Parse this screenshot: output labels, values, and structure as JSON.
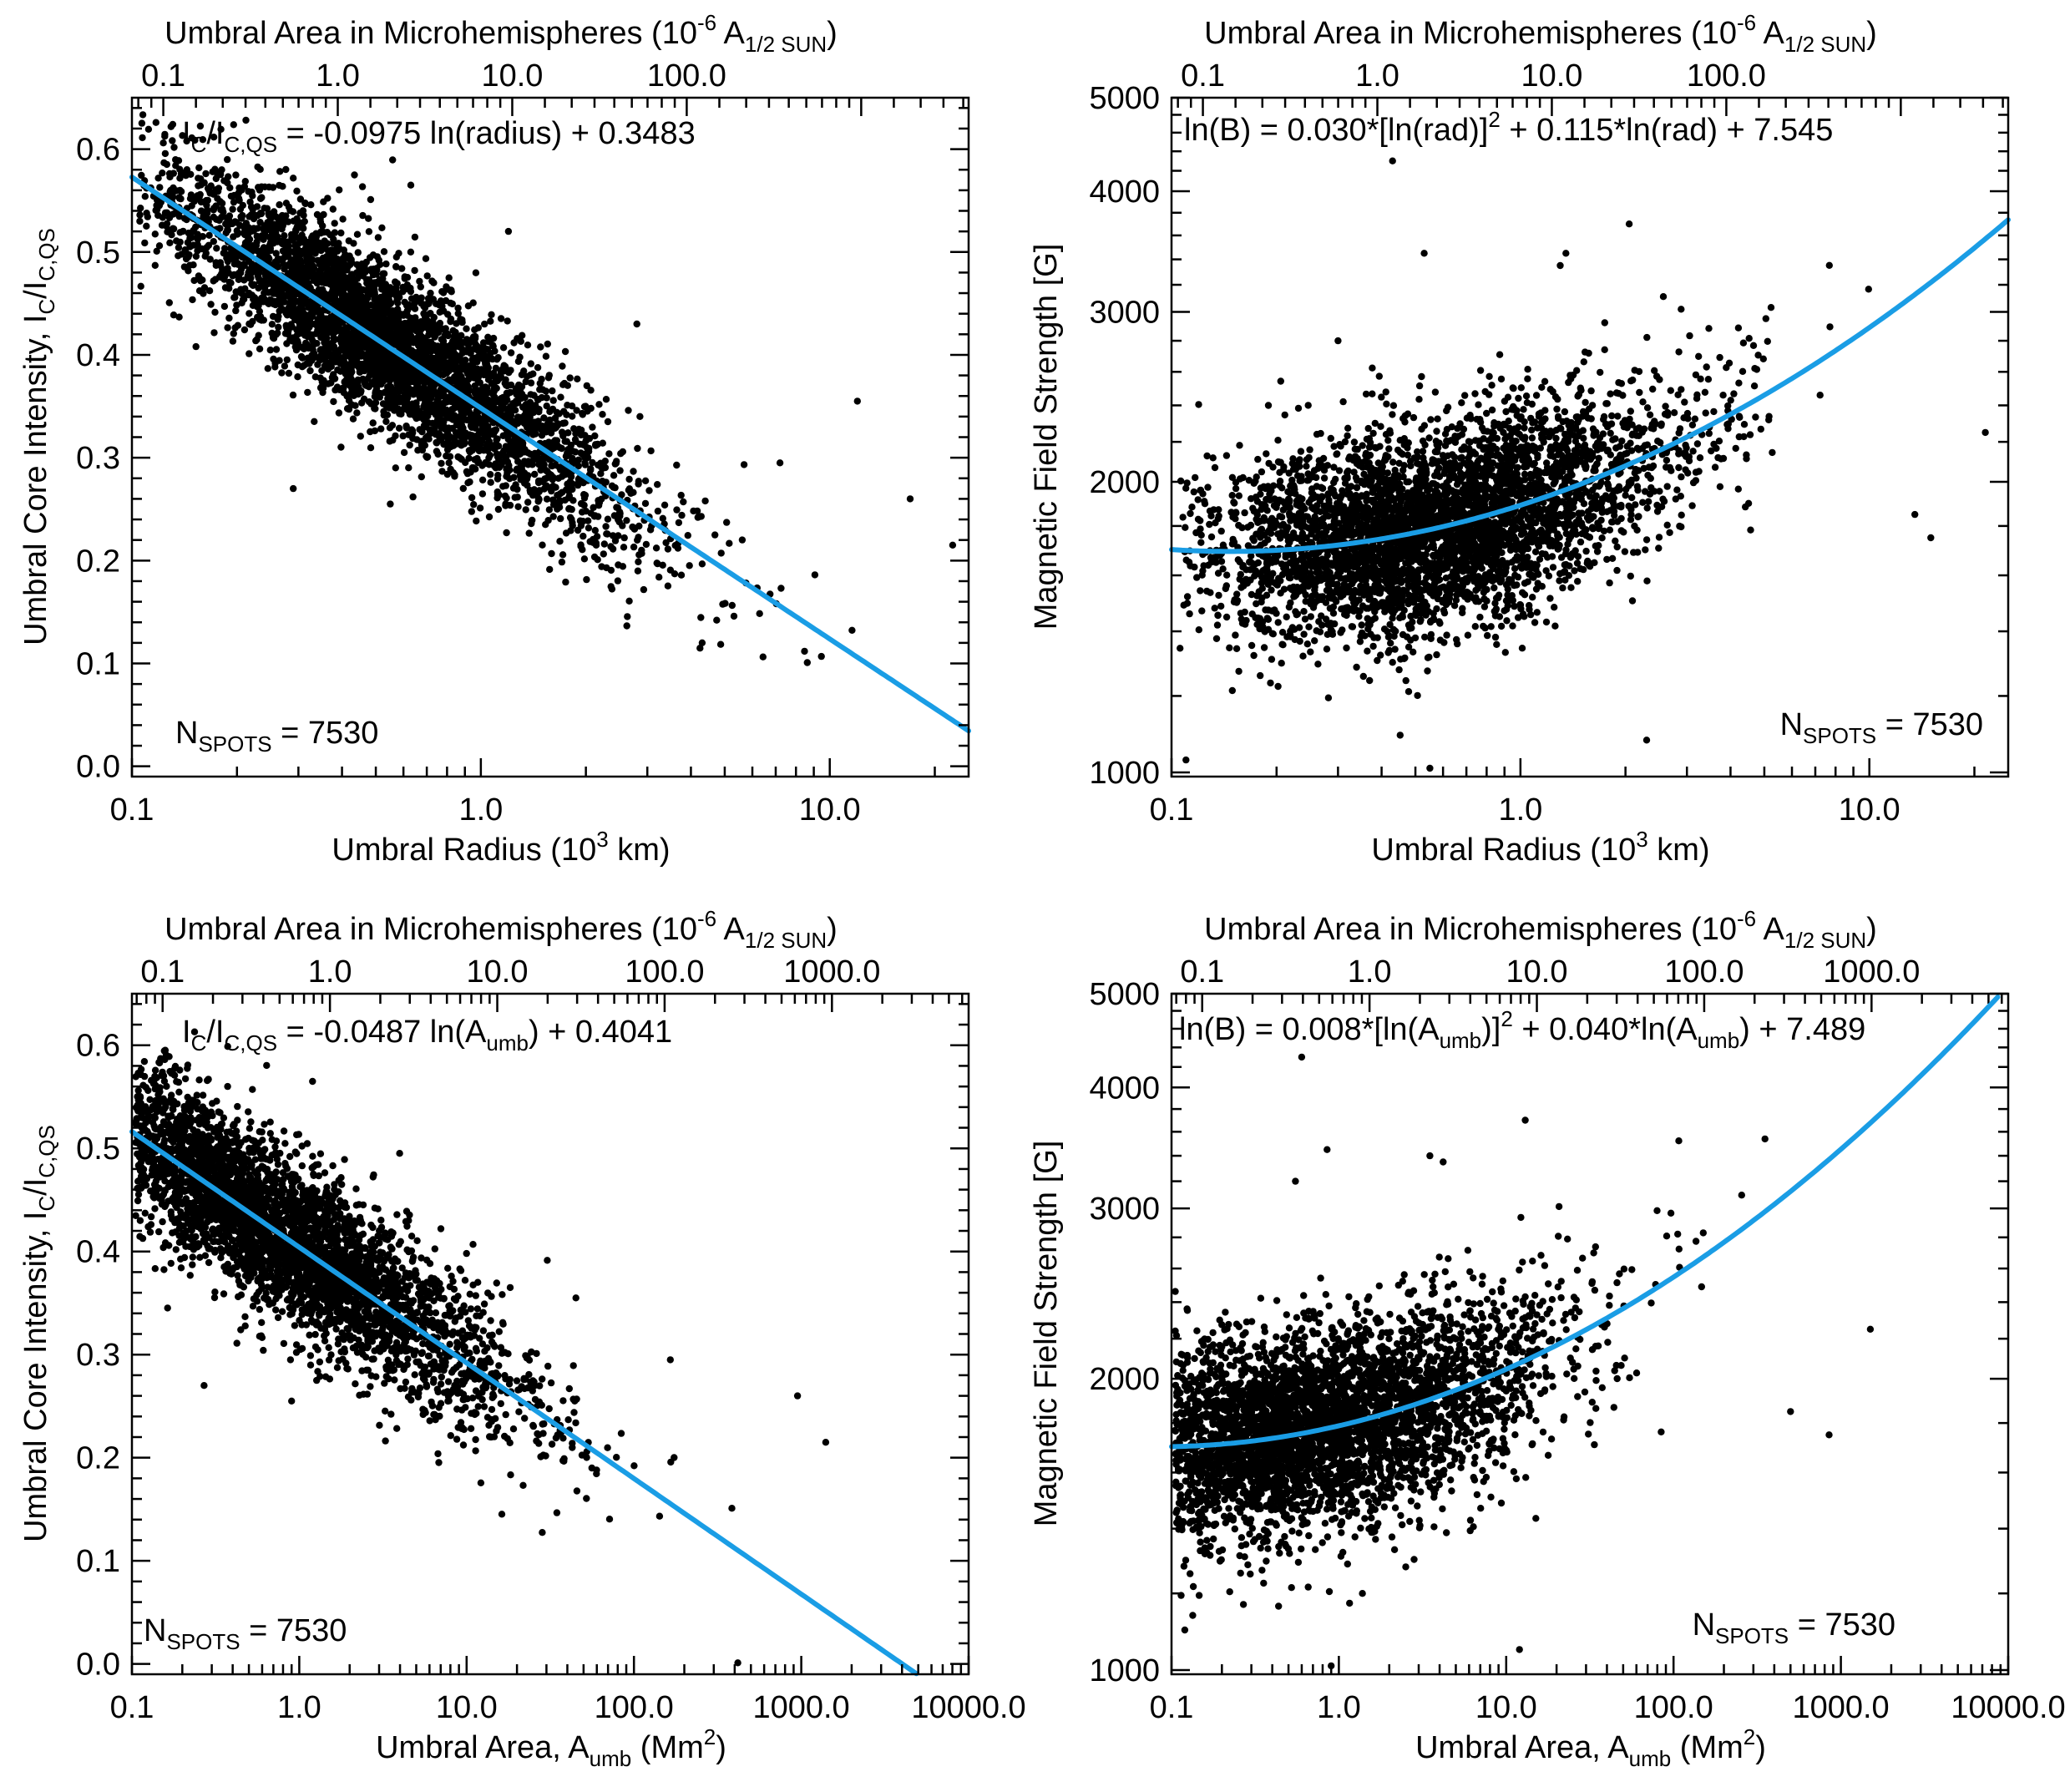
{
  "figure": {
    "panel_count": 4,
    "dot_color": "#000000",
    "fit_color": "#1a9de5",
    "n_spots_label": "N",
    "n_spots_sub": "SPOTS",
    "n_spots_value": " = 7530"
  },
  "chart_data": [
    {
      "id": "top-left",
      "type": "scatter",
      "xlabel": {
        "main": "Umbral Radius (10",
        "sup": "3",
        "end": " km)"
      },
      "ylabel": {
        "a": "Umbral Core Intensity, I",
        "b": "C",
        "c": "/I",
        "d": "C,QS"
      },
      "top_axis_label": {
        "main": "Umbral Area in Microhemispheres (10",
        "sup": "-6",
        "mid": " A",
        "sub": "1/2 SUN",
        "end": ")"
      },
      "xscale": "log",
      "yscale": "linear",
      "xlim": [
        0.1,
        25.0
      ],
      "ylim": [
        -0.01,
        0.65
      ],
      "xticks": [
        {
          "v": 0.1,
          "label": "0.1"
        },
        {
          "v": 1.0,
          "label": "1.0"
        },
        {
          "v": 10.0,
          "label": "10.0"
        }
      ],
      "yticks": [
        {
          "v": 0.0,
          "label": "0.0"
        },
        {
          "v": 0.1,
          "label": "0.1"
        },
        {
          "v": 0.2,
          "label": "0.2"
        },
        {
          "v": 0.3,
          "label": "0.3"
        },
        {
          "v": 0.4,
          "label": "0.4"
        },
        {
          "v": 0.5,
          "label": "0.5"
        },
        {
          "v": 0.6,
          "label": "0.6"
        }
      ],
      "top_ticks": [
        {
          "v": 0.123,
          "label": "0.1"
        },
        {
          "v": 0.389,
          "label": "1.0"
        },
        {
          "v": 1.23,
          "label": "10.0"
        },
        {
          "v": 3.89,
          "label": "100.0"
        }
      ],
      "fit": {
        "model": "y = -0.0975*ln(x) + 0.3483",
        "a": 0,
        "b": -0.0975,
        "c": 0.3483,
        "log_y": false
      },
      "equation": {
        "a": "I",
        "b": "C",
        "c": "/I",
        "d": "C,QS",
        "e": " = -0.0975 ln(radius) + 0.3483"
      },
      "n_spots_corner": "bottom-left",
      "cloud": {
        "n": 4200,
        "mu": -0.62,
        "sd": 0.72,
        "skew": 0.55,
        "noise": 0.04,
        "seed": 11
      },
      "outliers": [
        [
          0.63,
          0.565
        ],
        [
          2.8,
          0.43
        ],
        [
          1.2,
          0.52
        ],
        [
          12.0,
          0.355
        ],
        [
          7.2,
          0.295
        ],
        [
          17.0,
          0.26
        ],
        [
          22.5,
          0.215
        ],
        [
          0.29,
          0.27
        ],
        [
          0.55,
          0.255
        ]
      ]
    },
    {
      "id": "top-right",
      "type": "scatter",
      "xlabel": {
        "main": "Umbral Radius (10",
        "sup": "3",
        "end": " km)"
      },
      "ylabel": {
        "text": "Magnetic Field Strength [G]"
      },
      "top_axis_label": {
        "main": "Umbral Area in Microhemispheres (10",
        "sup": "-6",
        "mid": " A",
        "sub": "1/2 SUN",
        "end": ")"
      },
      "xscale": "log",
      "yscale": "log",
      "xlim": [
        0.1,
        25.0
      ],
      "ylim": [
        990,
        5000
      ],
      "xticks": [
        {
          "v": 0.1,
          "label": "0.1"
        },
        {
          "v": 1.0,
          "label": "1.0"
        },
        {
          "v": 10.0,
          "label": "10.0"
        }
      ],
      "yticks": [
        {
          "v": 1000,
          "label": "1000"
        },
        {
          "v": 2000,
          "label": "2000"
        },
        {
          "v": 3000,
          "label": "3000"
        },
        {
          "v": 4000,
          "label": "4000"
        },
        {
          "v": 5000,
          "label": "5000"
        }
      ],
      "top_ticks": [
        {
          "v": 0.123,
          "label": "0.1"
        },
        {
          "v": 0.389,
          "label": "1.0"
        },
        {
          "v": 1.23,
          "label": "10.0"
        },
        {
          "v": 3.89,
          "label": "100.0"
        }
      ],
      "fit": {
        "model": "ln(B) = 0.030*[ln(rad)]^2 + 0.115*ln(rad) + 7.545",
        "a": 0.03,
        "b": 0.115,
        "c": 7.545,
        "log_y": true
      },
      "equation": {
        "a": "ln(B) = 0.030*[ln(rad)]",
        "b": "2",
        "c": " + 0.115*ln(rad) + 7.545"
      },
      "n_spots_corner": "bottom-right",
      "cloud": {
        "n": 4200,
        "mu": -0.62,
        "sd": 0.72,
        "skew": 0.55,
        "noise": 0.12,
        "seed": 23
      },
      "outliers": [
        [
          0.43,
          4300
        ],
        [
          0.53,
          3450
        ],
        [
          0.3,
          2800
        ],
        [
          1.35,
          3450
        ],
        [
          2.05,
          3700
        ],
        [
          1.3,
          3350
        ],
        [
          21.5,
          2250
        ],
        [
          15.0,
          1750
        ],
        [
          13.5,
          1850
        ],
        [
          0.11,
          1030
        ],
        [
          2.3,
          1080
        ],
        [
          0.55,
          1010
        ]
      ]
    },
    {
      "id": "bottom-left",
      "type": "scatter",
      "xlabel": {
        "main": "Umbral Area, A",
        "sub": "umb",
        "mid": " (Mm",
        "sup": "2",
        "end": ")"
      },
      "ylabel": {
        "a": "Umbral Core Intensity, I",
        "b": "C",
        "c": "/I",
        "d": "C,QS"
      },
      "top_axis_label": {
        "main": "Umbral Area in Microhemispheres (10",
        "sup": "-6",
        "mid": " A",
        "sub": "1/2 SUN",
        "end": ")"
      },
      "xscale": "log",
      "yscale": "linear",
      "xlim": [
        0.1,
        10000.0
      ],
      "ylim": [
        -0.01,
        0.65
      ],
      "xticks": [
        {
          "v": 0.1,
          "label": "0.1"
        },
        {
          "v": 1.0,
          "label": "1.0"
        },
        {
          "v": 10.0,
          "label": "10.0"
        },
        {
          "v": 100.0,
          "label": "100.0"
        },
        {
          "v": 1000.0,
          "label": "1000.0"
        },
        {
          "v": 10000.0,
          "label": "10000.0"
        }
      ],
      "yticks": [
        {
          "v": 0.0,
          "label": "0.0"
        },
        {
          "v": 0.1,
          "label": "0.1"
        },
        {
          "v": 0.2,
          "label": "0.2"
        },
        {
          "v": 0.3,
          "label": "0.3"
        },
        {
          "v": 0.4,
          "label": "0.4"
        },
        {
          "v": 0.5,
          "label": "0.5"
        },
        {
          "v": 0.6,
          "label": "0.6"
        }
      ],
      "top_ticks": [
        {
          "v": 0.1525,
          "label": "0.1"
        },
        {
          "v": 1.525,
          "label": "1.0"
        },
        {
          "v": 15.25,
          "label": "10.0"
        },
        {
          "v": 152.5,
          "label": "100.0"
        },
        {
          "v": 1525,
          "label": "1000.0"
        }
      ],
      "fit": {
        "model": "y = -0.0487*ln(x) + 0.4041",
        "a": 0,
        "b": -0.0487,
        "c": 0.4041,
        "log_y": false
      },
      "equation": {
        "a": "I",
        "b": "C",
        "c": "/I",
        "d": "C,QS",
        "e": " = -0.0487 ln(A",
        "f": "umb",
        "g": ") + 0.4041"
      },
      "n_spots_corner": "bottom-left",
      "cloud": {
        "n": 4200,
        "mu": -0.39,
        "sd": 1.44,
        "skew": 0.55,
        "noise": 0.04,
        "seed": 37
      },
      "outliers": [
        [
          1.2,
          0.565
        ],
        [
          4.5,
          0.43
        ],
        [
          45.0,
          0.355
        ],
        [
          1400.0,
          0.215
        ],
        [
          950.0,
          0.26
        ],
        [
          165.0,
          0.295
        ],
        [
          0.27,
          0.27
        ],
        [
          0.9,
          0.255
        ]
      ]
    },
    {
      "id": "bottom-right",
      "type": "scatter",
      "xlabel": {
        "main": "Umbral Area, A",
        "sub": "umb",
        "mid": " (Mm",
        "sup": "2",
        "end": ")"
      },
      "ylabel": {
        "text": "Magnetic Field Strength [G]"
      },
      "top_axis_label": {
        "main": "Umbral Area in Microhemispheres (10",
        "sup": "-6",
        "mid": " A",
        "sub": "1/2 SUN",
        "end": ")"
      },
      "xscale": "log",
      "yscale": "log",
      "xlim": [
        0.1,
        10000.0
      ],
      "ylim": [
        990,
        5000
      ],
      "xticks": [
        {
          "v": 0.1,
          "label": "0.1"
        },
        {
          "v": 1.0,
          "label": "1.0"
        },
        {
          "v": 10.0,
          "label": "10.0"
        },
        {
          "v": 100.0,
          "label": "100.0"
        },
        {
          "v": 1000.0,
          "label": "1000.0"
        },
        {
          "v": 10000.0,
          "label": "10000.0"
        }
      ],
      "yticks": [
        {
          "v": 1000,
          "label": "1000"
        },
        {
          "v": 2000,
          "label": "2000"
        },
        {
          "v": 3000,
          "label": "3000"
        },
        {
          "v": 4000,
          "label": "4000"
        },
        {
          "v": 5000,
          "label": "5000"
        }
      ],
      "top_ticks": [
        {
          "v": 0.1525,
          "label": "0.1"
        },
        {
          "v": 1.525,
          "label": "1.0"
        },
        {
          "v": 15.25,
          "label": "10.0"
        },
        {
          "v": 152.5,
          "label": "100.0"
        },
        {
          "v": 1525,
          "label": "1000.0"
        }
      ],
      "fit": {
        "model": "ln(B) = 0.008*[ln(Aumb)]^2 + 0.040*ln(Aumb) + 7.489",
        "a": 0.008,
        "b": 0.04,
        "c": 7.489,
        "log_y": true
      },
      "equation": {
        "a": "ln(B) = 0.008*[ln(A",
        "b": "umb",
        "c": ")]",
        "d": "2",
        "e": " + 0.040*ln(A",
        "f": "umb",
        "g": ") + 7.489"
      },
      "n_spots_corner": "bottom-right",
      "cloud": {
        "n": 4200,
        "mu": -0.39,
        "sd": 1.44,
        "skew": 0.55,
        "noise": 0.12,
        "seed": 51
      },
      "outliers": [
        [
          0.6,
          4300
        ],
        [
          0.85,
          3450
        ],
        [
          0.55,
          3200
        ],
        [
          3.5,
          3400
        ],
        [
          13.0,
          3700
        ],
        [
          4.2,
          3350
        ],
        [
          1500.0,
          2250
        ],
        [
          850.0,
          1750
        ],
        [
          500.0,
          1850
        ],
        [
          0.12,
          1100
        ],
        [
          12.0,
          1050
        ],
        [
          0.9,
          1010
        ]
      ]
    }
  ]
}
